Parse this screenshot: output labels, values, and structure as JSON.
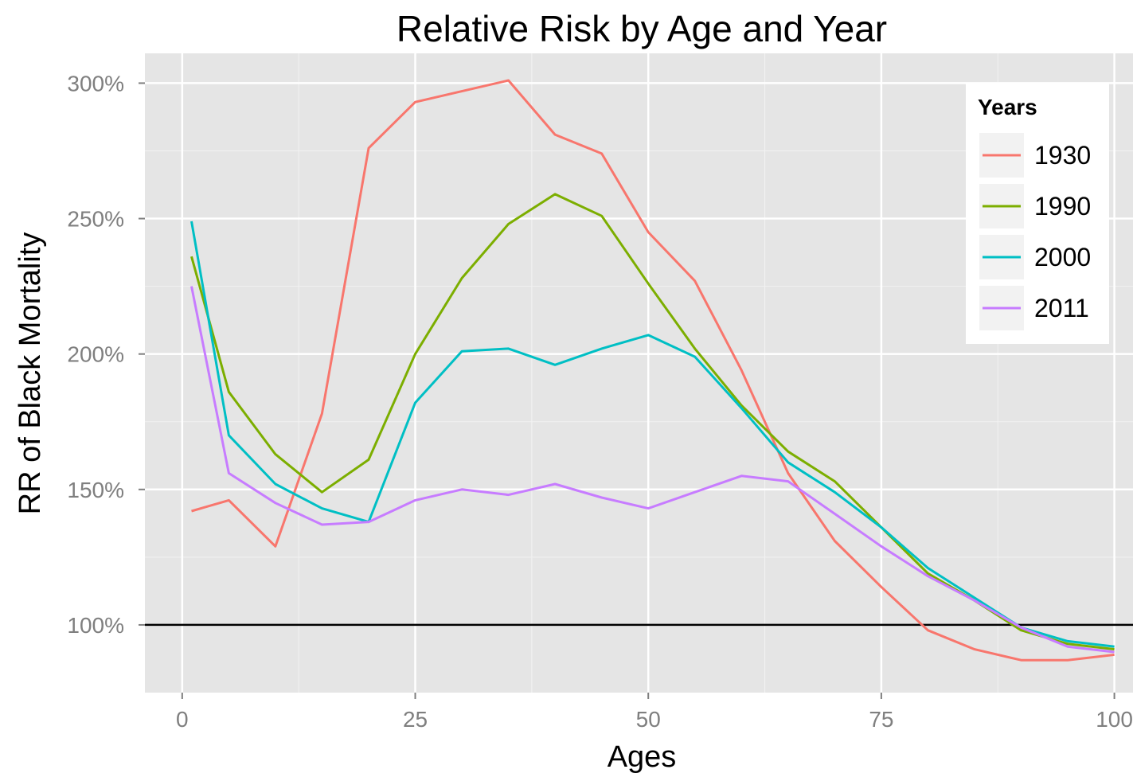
{
  "chart_data": {
    "type": "line",
    "title": "Relative Risk by Age and Year",
    "xlabel": "Ages",
    "ylabel": "RR of Black Mortality",
    "xlim": [
      -4,
      102
    ],
    "ylim": [
      0.75,
      3.11
    ],
    "x_ticks": [
      0,
      25,
      50,
      75,
      100
    ],
    "x_tick_labels": [
      "0",
      "25",
      "50",
      "75",
      "100"
    ],
    "y_ticks": [
      1.0,
      1.5,
      2.0,
      2.5,
      3.0
    ],
    "y_tick_labels": [
      "100%",
      "150%",
      "200%",
      "250%",
      "300%"
    ],
    "reference_line": 1.0,
    "grid": true,
    "legend_title": "Years",
    "legend_position": "top-right",
    "x": [
      1,
      5,
      10,
      15,
      20,
      25,
      30,
      35,
      40,
      45,
      50,
      55,
      60,
      65,
      70,
      75,
      80,
      85,
      90,
      95,
      100
    ],
    "series": [
      {
        "name": "1930",
        "color": "#F8766D",
        "values": [
          1.42,
          1.46,
          1.29,
          1.78,
          2.76,
          2.93,
          2.97,
          3.01,
          2.81,
          2.74,
          2.45,
          2.27,
          1.94,
          1.56,
          1.31,
          1.14,
          0.98,
          0.91,
          0.87,
          0.87,
          0.89
        ]
      },
      {
        "name": "1990",
        "color": "#7CAE00",
        "values": [
          2.36,
          1.86,
          1.63,
          1.49,
          1.61,
          2.0,
          2.28,
          2.48,
          2.59,
          2.51,
          2.26,
          2.02,
          1.81,
          1.64,
          1.53,
          1.36,
          1.19,
          1.09,
          0.98,
          0.93,
          0.91
        ]
      },
      {
        "name": "2000",
        "color": "#00BFC4",
        "values": [
          2.49,
          1.7,
          1.52,
          1.43,
          1.38,
          1.82,
          2.01,
          2.02,
          1.96,
          2.02,
          2.07,
          1.99,
          1.8,
          1.6,
          1.49,
          1.36,
          1.21,
          1.1,
          0.99,
          0.94,
          0.92
        ]
      },
      {
        "name": "2011",
        "color": "#C77CFF",
        "values": [
          2.25,
          1.56,
          1.45,
          1.37,
          1.38,
          1.46,
          1.5,
          1.48,
          1.52,
          1.47,
          1.43,
          1.49,
          1.55,
          1.53,
          1.41,
          1.29,
          1.18,
          1.09,
          0.99,
          0.92,
          0.9
        ]
      }
    ]
  }
}
